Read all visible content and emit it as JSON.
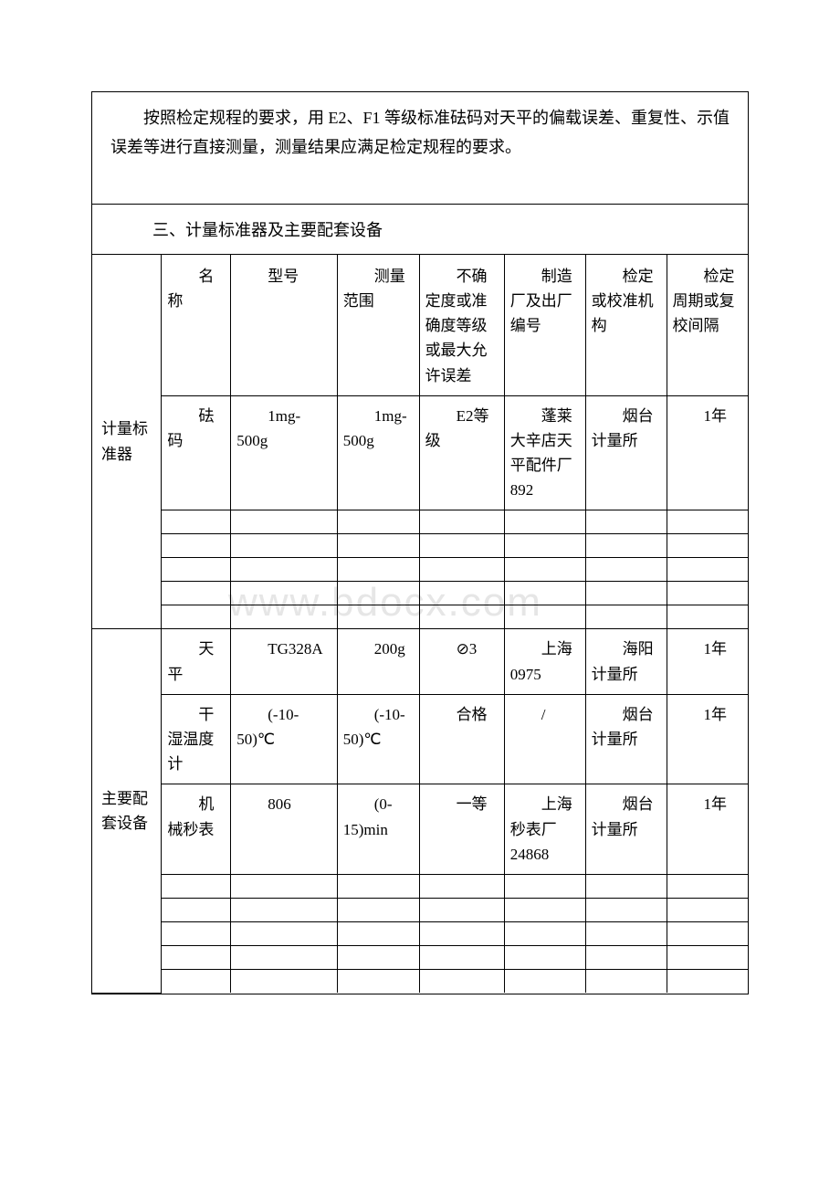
{
  "description": "按照检定规程的要求，用 E2、F1 等级标准砝码对天平的偏载误差、重复性、示值误差等进行直接测量，测量结果应满足检定规程的要求。",
  "section_title": "三、计量标准器及主要配套设备",
  "columns": {
    "name": "名称",
    "model": "型号",
    "range": "测量范围",
    "uncertainty": "不确定度或准确度等级或最大允许误差",
    "manufacturer": "制造厂及出厂编号",
    "organization": "检定或校准机构",
    "period": "检定周期或复校间隔"
  },
  "side_labels": {
    "standard": "计量标准器",
    "auxiliary": "主要配套设备"
  },
  "standard_rows": [
    {
      "name": "砝码",
      "model": "1mg-500g",
      "range": "1mg-500g",
      "uncertainty": "E2等级",
      "manufacturer": "蓬莱大辛店天平配件厂892",
      "organization": "烟台计量所",
      "period": "1年"
    }
  ],
  "auxiliary_rows": [
    {
      "name": "天平",
      "model": "TG328A",
      "range": "200g",
      "uncertainty": "⊘3",
      "manufacturer": "上海 0975",
      "organization": "海阳计量所",
      "period": "1年"
    },
    {
      "name": "干湿温度计",
      "model": "(-10-50)℃",
      "range": "(-10-50)℃",
      "uncertainty": "合格",
      "manufacturer": "/",
      "organization": "烟台计量所",
      "period": "1年"
    },
    {
      "name": "机械秒表",
      "model": "806",
      "range": "(0-15)min",
      "uncertainty": "一等",
      "manufacturer": "上海秒表厂24868",
      "organization": "烟台计量所",
      "period": "1年"
    }
  ],
  "watermark": "www.bdocx.com",
  "colors": {
    "text": "#000000",
    "background": "#ffffff",
    "border": "#000000",
    "watermark": "#e6e6e6"
  }
}
